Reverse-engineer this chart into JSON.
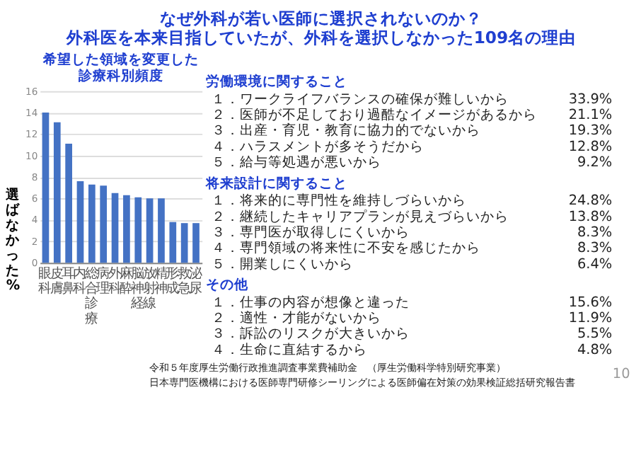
{
  "chart_data": [
    {
      "type": "bar",
      "title": [
        "なぜ外科が若い医師に選択されないのか？",
        "外科医を本来目指していたが、外科を選択しなかった109名の理由"
      ],
      "subtitle": [
        "希望した領域を変更した",
        "診療科別頻度"
      ],
      "ylabel": "選ばなかった%",
      "categories": [
        "眼科",
        "皮膚",
        "耳鼻",
        "内科",
        "総合診療",
        "病理",
        "外科",
        "麻酔",
        "脳神経",
        "放射線",
        "精神",
        "形成",
        "救急",
        "泌尿"
      ],
      "values": [
        14.0,
        13.1,
        11.1,
        7.6,
        7.3,
        7.2,
        6.5,
        6.3,
        6.1,
        6.0,
        6.0,
        3.8,
        3.7,
        3.7
      ],
      "color": "#4472c4",
      "ylim": [
        0,
        16
      ],
      "yticks": [
        0,
        2,
        4,
        6,
        8,
        10,
        12,
        14,
        16
      ],
      "grid": "y",
      "annotations": [
        "令和５年度厚生労働行政推進調査事業費補助金　（厚生労働科学特別研究事業）",
        "日本専門医機構における医師専門研修シーリングによる医師偏在対策の効果検証総括研究報告書",
        "10"
      ]
    },
    {
      "type": "other",
      "title": "労働環境に関すること",
      "categories": [
        "１．ワークライフバランスの確保が難しいから",
        "２．医師が不足しており過酷なイメージがあるから",
        "３．出産・育児・教育に協力的でないから",
        "４．ハラスメントが多そうだから",
        "５．給与等処遇が悪いから"
      ],
      "value_labels": [
        "33.9%",
        "21.1%",
        "19.3%",
        "12.8%",
        "9.2%"
      ]
    },
    {
      "type": "other",
      "title": "将来設計に関すること",
      "categories": [
        "１．将来的に専門性を維持しづらいから",
        "２．継続したキャリアプランが見えづらいから",
        "３．専門医が取得しにくいから",
        "４．専門領域の将来性に不安を感じたから",
        "５．開業しにくいから"
      ],
      "value_labels": [
        "24.8%",
        "13.8%",
        "8.3%",
        "8.3%",
        "6.4%"
      ]
    },
    {
      "type": "other",
      "title": "その他",
      "categories": [
        "１．仕事の内容が想像と違った",
        "２．適性・才能がないから",
        "３．訴訟のリスクが大きいから",
        "４．生命に直結するから"
      ],
      "value_labels": [
        "15.6%",
        "11.9%",
        "5.5%",
        "4.8%"
      ]
    }
  ]
}
